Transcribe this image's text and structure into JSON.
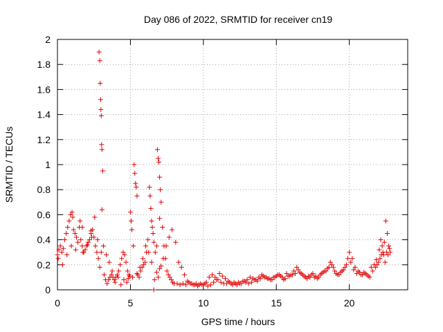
{
  "chart_data": {
    "type": "scatter",
    "title": "Day 086 of 2022, SRMTID for receiver cn19",
    "xlabel": "GPS time / hours",
    "ylabel": "SRMTID / TECUs",
    "xlim": [
      0,
      24
    ],
    "ylim": [
      0,
      2
    ],
    "xticks": [
      0,
      5,
      10,
      15,
      20
    ],
    "xtick_labels": [
      "0",
      "5",
      "10",
      "15",
      "20"
    ],
    "yticks": [
      0,
      0.2,
      0.4,
      0.6,
      0.8,
      1,
      1.2,
      1.4,
      1.6,
      1.8,
      2
    ],
    "ytick_labels": [
      "0",
      "0.2",
      "0.4",
      "0.6",
      "0.8",
      "1",
      "1.2",
      "1.4",
      "1.6",
      "1.8",
      "2"
    ],
    "grid": true,
    "marker": "+",
    "marker_color": "#e00000",
    "series": [
      {
        "name": "cn19",
        "x": [
          0.0,
          0.1,
          0.2,
          0.3,
          0.4,
          0.5,
          0.6,
          0.7,
          0.8,
          0.9,
          1.0,
          1.05,
          1.1,
          1.2,
          1.3,
          1.4,
          1.5,
          1.55,
          1.6,
          1.7,
          1.8,
          1.9,
          2.0,
          2.1,
          2.2,
          2.3,
          2.4,
          2.5,
          2.6,
          2.7,
          2.8,
          2.85,
          2.9,
          2.93,
          2.96,
          2.98,
          3.0,
          3.02,
          3.05,
          3.1,
          3.2,
          3.3,
          3.4,
          3.5,
          3.6,
          3.7,
          3.8,
          3.9,
          4.0,
          4.1,
          4.2,
          4.3,
          4.4,
          4.5,
          4.6,
          4.7,
          4.8,
          4.9,
          5.0,
          5.05,
          5.1,
          5.2,
          5.25,
          5.3,
          5.35,
          5.4,
          5.45,
          5.5,
          5.6,
          5.7,
          5.8,
          5.9,
          6.0,
          6.1,
          6.2,
          6.3,
          6.35,
          6.4,
          6.45,
          6.5,
          6.55,
          6.6,
          6.7,
          6.8,
          6.85,
          6.9,
          6.95,
          7.0,
          7.05,
          7.1,
          7.2,
          7.3,
          7.4,
          7.5,
          7.6,
          7.7,
          7.8,
          7.9,
          8.0,
          8.2,
          8.4,
          8.6,
          8.8,
          9.0,
          9.2,
          9.4,
          9.6,
          9.8,
          10.0,
          10.2,
          10.4,
          10.6,
          10.8,
          11.0,
          11.2,
          11.4,
          11.6,
          11.8,
          12.0,
          12.2,
          12.4,
          12.6,
          12.8,
          13.0,
          13.2,
          13.4,
          13.6,
          13.8,
          14.0,
          14.2,
          14.4,
          14.6,
          14.8,
          15.0,
          15.2,
          15.4,
          15.6,
          15.8,
          16.0,
          16.2,
          16.4,
          16.6,
          16.8,
          17.0,
          17.2,
          17.4,
          17.6,
          17.8,
          18.0,
          18.2,
          18.4,
          18.6,
          18.8,
          19.0,
          19.2,
          19.4,
          19.6,
          19.8,
          20.0,
          20.2,
          20.4,
          20.6,
          20.8,
          21.0,
          21.2,
          21.4,
          21.6,
          21.8,
          21.9,
          22.0,
          22.1,
          22.2,
          22.3,
          22.4,
          22.5,
          22.6,
          22.7,
          22.8,
          0.05,
          0.35,
          0.65,
          0.95,
          1.25,
          1.75,
          2.05,
          2.35,
          2.55,
          2.75,
          2.9,
          3.0,
          3.05,
          3.15,
          3.35,
          3.55,
          3.75,
          3.95,
          4.15,
          4.35,
          4.55,
          4.75,
          4.85,
          4.95,
          5.15,
          5.45,
          5.65,
          5.85,
          6.05,
          6.25,
          6.45,
          6.65,
          6.8,
          6.9,
          7.0,
          7.1,
          7.25,
          7.45,
          7.65,
          7.85,
          8.1,
          8.3,
          8.5,
          8.7,
          8.9,
          9.1,
          9.3,
          9.5,
          9.7,
          9.9,
          10.1,
          10.3,
          10.5,
          10.7,
          10.9,
          11.1,
          11.3,
          11.5,
          11.7,
          11.9,
          12.1,
          12.3,
          12.5,
          12.7,
          12.9,
          13.1,
          13.3,
          13.5,
          13.7,
          13.9,
          14.1,
          14.3,
          14.5,
          14.7,
          14.9,
          15.1,
          15.3,
          15.5,
          15.7,
          15.9,
          16.1,
          16.3,
          16.5,
          16.7,
          16.9,
          17.1,
          17.3,
          17.5,
          17.7,
          17.9,
          18.1,
          18.3,
          18.5,
          18.7,
          18.9,
          19.1,
          19.3,
          19.5,
          19.7,
          19.9,
          20.1,
          20.3,
          20.5,
          20.7,
          20.9,
          21.1,
          21.3,
          21.5,
          21.7,
          21.85,
          22.05,
          22.15,
          22.25,
          22.35,
          22.45,
          22.55,
          22.65,
          22.75,
          1.7,
          2.3,
          6.6,
          7.0
        ],
        "y": [
          0.28,
          0.32,
          0.35,
          0.3,
          0.33,
          0.4,
          0.45,
          0.5,
          0.55,
          0.6,
          0.62,
          0.58,
          0.48,
          0.45,
          0.42,
          0.38,
          0.5,
          0.55,
          0.4,
          0.35,
          0.3,
          0.32,
          0.35,
          0.38,
          0.4,
          0.45,
          0.48,
          0.42,
          0.35,
          0.3,
          0.25,
          1.9,
          1.83,
          1.65,
          1.52,
          1.44,
          1.39,
          1.16,
          1.12,
          0.95,
          0.12,
          0.08,
          0.05,
          0.08,
          0.1,
          0.12,
          0.1,
          0.08,
          0.1,
          0.12,
          0.15,
          0.2,
          0.25,
          0.3,
          0.28,
          0.22,
          0.15,
          0.12,
          0.62,
          0.55,
          0.48,
          0.35,
          1.0,
          0.93,
          0.85,
          0.82,
          0.75,
          0.12,
          0.1,
          0.15,
          0.18,
          0.2,
          0.22,
          0.3,
          0.4,
          0.82,
          0.75,
          0.65,
          0.55,
          0.5,
          0.45,
          0.38,
          0.3,
          0.35,
          1.12,
          1.05,
          1.02,
          0.9,
          0.8,
          0.7,
          0.5,
          0.35,
          0.25,
          0.15,
          0.12,
          0.1,
          0.08,
          0.06,
          0.05,
          0.05,
          0.04,
          0.05,
          0.04,
          0.06,
          0.05,
          0.04,
          0.03,
          0.05,
          0.04,
          0.06,
          0.1,
          0.12,
          0.1,
          0.08,
          0.06,
          0.05,
          0.05,
          0.06,
          0.04,
          0.05,
          0.06,
          0.05,
          0.07,
          0.08,
          0.1,
          0.09,
          0.08,
          0.1,
          0.12,
          0.1,
          0.09,
          0.08,
          0.1,
          0.11,
          0.12,
          0.1,
          0.09,
          0.11,
          0.12,
          0.15,
          0.18,
          0.14,
          0.12,
          0.1,
          0.11,
          0.12,
          0.1,
          0.09,
          0.12,
          0.14,
          0.15,
          0.18,
          0.2,
          0.15,
          0.12,
          0.14,
          0.16,
          0.2,
          0.3,
          0.25,
          0.18,
          0.15,
          0.12,
          0.14,
          0.12,
          0.1,
          0.15,
          0.18,
          0.2,
          0.22,
          0.25,
          0.28,
          0.3,
          0.38,
          0.55,
          0.45,
          0.35,
          0.3,
          0.25,
          0.2,
          0.28,
          0.35,
          0.32,
          0.3,
          0.36,
          0.42,
          0.58,
          0.4,
          0.18,
          0.3,
          0.64,
          0.35,
          0.28,
          0.22,
          0.15,
          0.06,
          0.1,
          0.04,
          0.08,
          0.06,
          0.09,
          0.11,
          0.1,
          0.13,
          0.18,
          0.25,
          0.35,
          0.3,
          0.22,
          0.08,
          0.14,
          0.1,
          0.17,
          0.19,
          0.25,
          0.35,
          0.42,
          0.48,
          0.38,
          0.22,
          0.18,
          0.12,
          0.07,
          0.05,
          0.04,
          0.05,
          0.04,
          0.04,
          0.05,
          0.03,
          0.04,
          0.06,
          0.08,
          0.13,
          0.11,
          0.09,
          0.07,
          0.05,
          0.06,
          0.04,
          0.05,
          0.07,
          0.06,
          0.05,
          0.06,
          0.08,
          0.07,
          0.09,
          0.11,
          0.1,
          0.09,
          0.08,
          0.1,
          0.12,
          0.11,
          0.08,
          0.13,
          0.11,
          0.12,
          0.13,
          0.16,
          0.13,
          0.11,
          0.09,
          0.1,
          0.13,
          0.11,
          0.1,
          0.13,
          0.15,
          0.17,
          0.22,
          0.18,
          0.13,
          0.12,
          0.15,
          0.18,
          0.25,
          0.22,
          0.16,
          0.13,
          0.14,
          0.12,
          0.13,
          0.11,
          0.18,
          0.2,
          0.24,
          0.32,
          0.4,
          0.35,
          0.28,
          0.22,
          0.3,
          0.28,
          0.33,
          0.5,
          0.47,
          0.0,
          0.57
        ]
      }
    ]
  }
}
